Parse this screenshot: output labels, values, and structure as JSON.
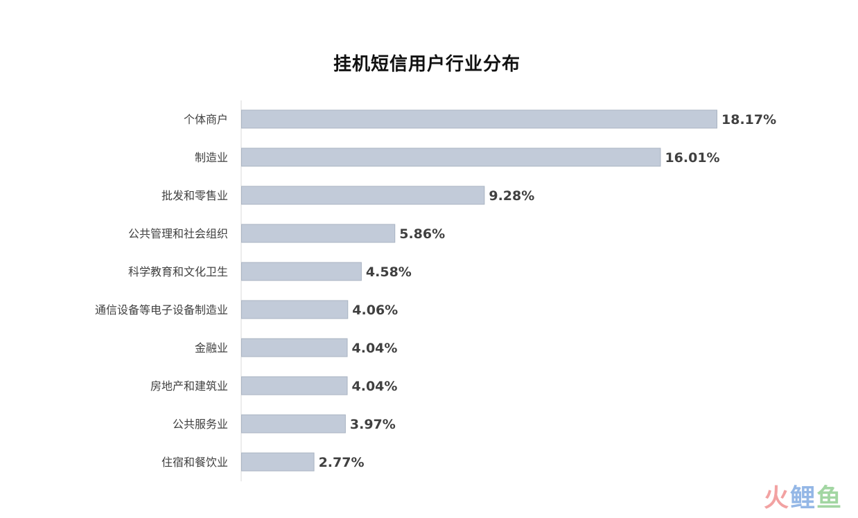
{
  "chart_data": {
    "type": "bar",
    "orientation": "horizontal",
    "title": "挂机短信用户行业分布",
    "xlabel": "",
    "ylabel": "",
    "xlim": [
      0,
      18.17
    ],
    "grid": false,
    "categories": [
      "个体商户",
      "制造业",
      "批发和零售业",
      "公共管理和社会组织",
      "科学教育和文化卫生",
      "通信设备等电子设备制造业",
      "金融业",
      "房地产和建筑业",
      "公共服务业",
      "住宿和餐饮业"
    ],
    "values": [
      18.17,
      16.01,
      9.28,
      5.86,
      4.58,
      4.06,
      4.04,
      4.04,
      3.97,
      2.77
    ],
    "value_labels": [
      "18.17%",
      "16.01%",
      "9.28%",
      "5.86%",
      "4.58%",
      "4.06%",
      "4.04%",
      "4.04%",
      "3.97%",
      "2.77%"
    ],
    "bar_color": "#c2cbd9",
    "bar_border_color": "#a9b3c2"
  },
  "watermark": {
    "char1": "火",
    "char2": "鲤",
    "char3": "鱼",
    "color1": "#f08b8b",
    "color2": "#7aa6e0",
    "color3": "#8ccc8c"
  }
}
